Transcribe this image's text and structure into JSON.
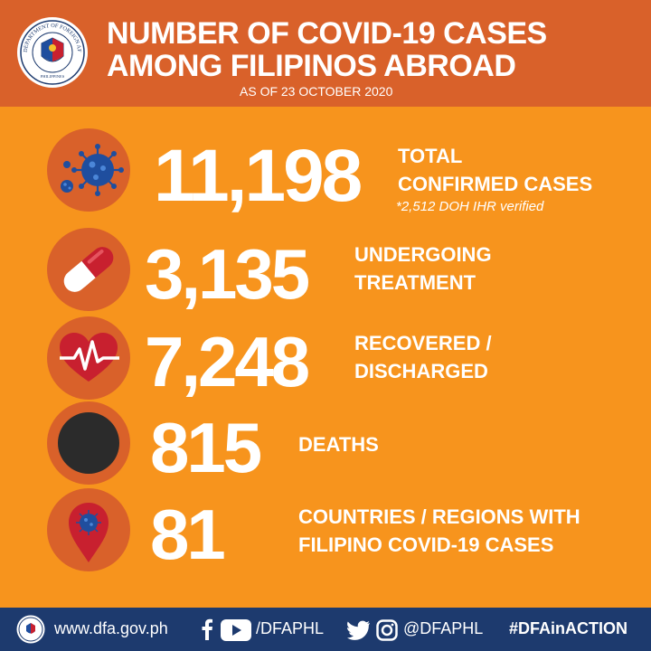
{
  "header": {
    "title_line1": "NUMBER OF COVID-19 CASES",
    "title_line2": "AMONG FILIPINOS ABROAD",
    "as_of": "AS OF 23 OCTOBER 2020"
  },
  "seal": {
    "ring_text": "DEPARTMENT OF FOREIGN AFFAIRS",
    "bottom_text": "PHILIPPINES"
  },
  "stats": [
    {
      "value": "11,198",
      "label_line1": "TOTAL",
      "label_line2": "CONFIRMED CASES",
      "note": "*2,512 DOH IHR verified",
      "icon": "virus-icon"
    },
    {
      "value": "3,135",
      "label_line1": "UNDERGOING",
      "label_line2": "TREATMENT",
      "icon": "pill-capsule-icon"
    },
    {
      "value": "7,248",
      "label_line1": "RECOVERED /",
      "label_line2": "DISCHARGED",
      "icon": "heartbeat-icon"
    },
    {
      "value": "815",
      "label_line1": "DEATHS",
      "icon": "black-circle-icon"
    },
    {
      "value": "81",
      "label_line1": "COUNTRIES / REGIONS WITH",
      "label_line2": "FILIPINO COVID-19 CASES",
      "icon": "location-pin-virus-icon"
    }
  ],
  "footer": {
    "website": "www.dfa.gov.ph",
    "fb_yt_handle": "/DFAPHL",
    "tw_ig_handle": "@DFAPHL",
    "hashtag": "#DFAinACTION"
  },
  "colors": {
    "background": "#f7941d",
    "header": "#d9612a",
    "icon_circle": "#d9612a",
    "footer": "#1d3a6e",
    "virus": "#1f4e9e",
    "pill_red": "#c8202f"
  }
}
